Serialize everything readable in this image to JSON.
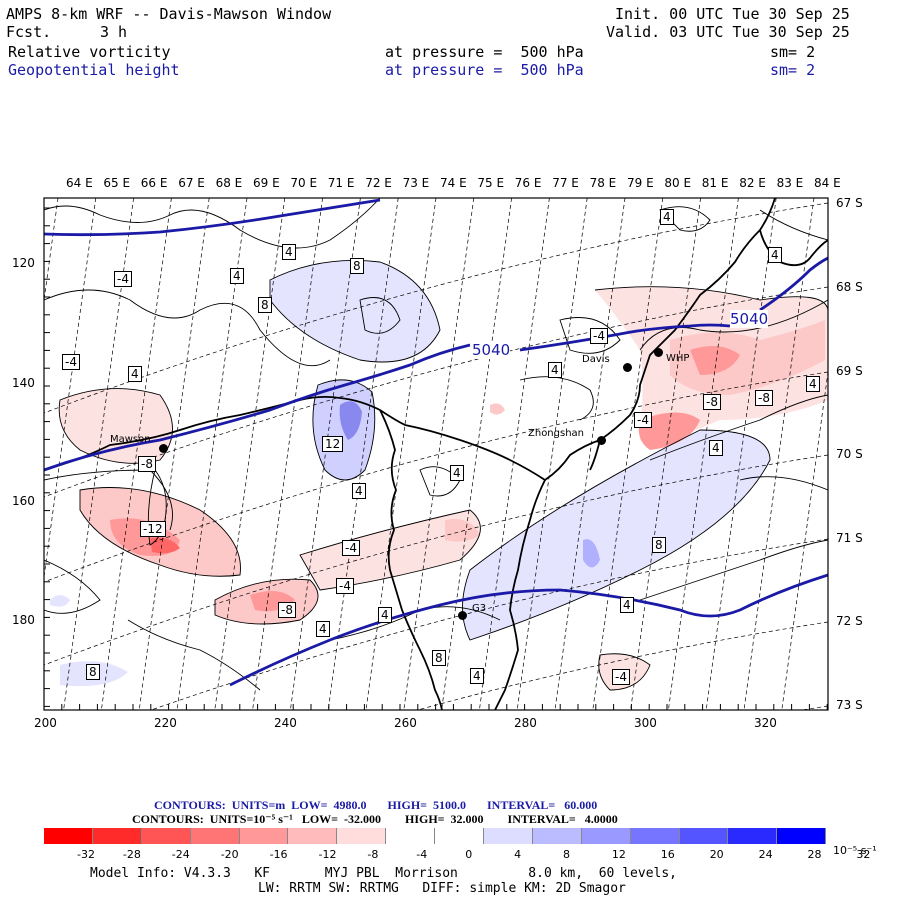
{
  "header": {
    "title": "AMPS 8-km WRF -- Davis-Mawson Window",
    "fcst_label": "Fcst.",
    "fcst_value": "3 h",
    "init": "Init. 00 UTC Tue 30 Sep 25",
    "valid": "Valid. 03 UTC Tue 30 Sep 25",
    "field1": "Relative vorticity",
    "field1_level": "at pressure =  500 hPa",
    "field1_sm": "sm= 2",
    "field2": "Geopotential height",
    "field2_level": "at pressure =  500 hPa",
    "field2_sm": "sm= 2"
  },
  "map": {
    "lon_labels": [
      "64 E",
      "65 E",
      "66 E",
      "67 E",
      "68 E",
      "69 E",
      "70 E",
      "71 E",
      "72 E",
      "73 E",
      "74 E",
      "75 E",
      "76 E",
      "77 E",
      "78 E",
      "79 E",
      "80 E",
      "81 E",
      "82 E",
      "83 E",
      "84 E"
    ],
    "lat_labels": [
      "67 S",
      "68 S",
      "69 S",
      "70 S",
      "71 S",
      "72 S",
      "73 S"
    ],
    "x_axis": [
      "200",
      "220",
      "240",
      "260",
      "280",
      "300",
      "320"
    ],
    "y_axis": [
      "120",
      "140",
      "160",
      "180"
    ],
    "stations": [
      "Mawson",
      "Davis",
      "Zhongshan",
      "G3",
      "WHP"
    ],
    "height_labels": [
      "5040",
      "5040"
    ],
    "contour_labels": [
      "4",
      "4",
      "8",
      "8",
      "-4",
      "4",
      "-4",
      "-4",
      "4",
      "12",
      "4",
      "-8",
      "-12",
      "-4",
      "-4",
      "-8",
      "4",
      "4",
      "8",
      "4",
      "4",
      "8",
      "4",
      "-8",
      "4",
      "-4",
      "4",
      "8",
      "-4",
      "4",
      "-8",
      "4"
    ],
    "colors": {
      "height_contour": "#1a1aa6",
      "frame": "#000000"
    }
  },
  "legend": {
    "line1": "CONTOURS:  UNITS=m  LOW=  4980.0       HIGH=  5100.0       INTERVAL=   60.000",
    "line2": "CONTOURS:  UNITS=10⁻⁵ s⁻¹   LOW=  -32.000        HIGH=  32.000        INTERVAL=   4.0000",
    "colorbar_colors": [
      "#ff0000",
      "#ff2a2a",
      "#ff5555",
      "#ff7575",
      "#ff9999",
      "#ffbbbb",
      "#ffdddd",
      "#ffffff",
      "#ffffff",
      "#ddddff",
      "#bbbbff",
      "#9999ff",
      "#7575ff",
      "#5555ff",
      "#2a2aff",
      "#0000ff"
    ],
    "colorbar_ticks": [
      "-32",
      "-28",
      "-24",
      "-20",
      "-16",
      "-12",
      "-8",
      "-4",
      "0",
      "4",
      "8",
      "12",
      "16",
      "20",
      "24",
      "28",
      "32"
    ],
    "colorbar_unit": "10⁻⁵ s⁻¹"
  },
  "footer": {
    "line1": "Model Info: V4.3.3   KF       MYJ PBL  Morrison         8.0 km,  60 levels,",
    "line2": "LW: RRTM SW: RRTMG   DIFF: simple KM: 2D Smagor"
  }
}
